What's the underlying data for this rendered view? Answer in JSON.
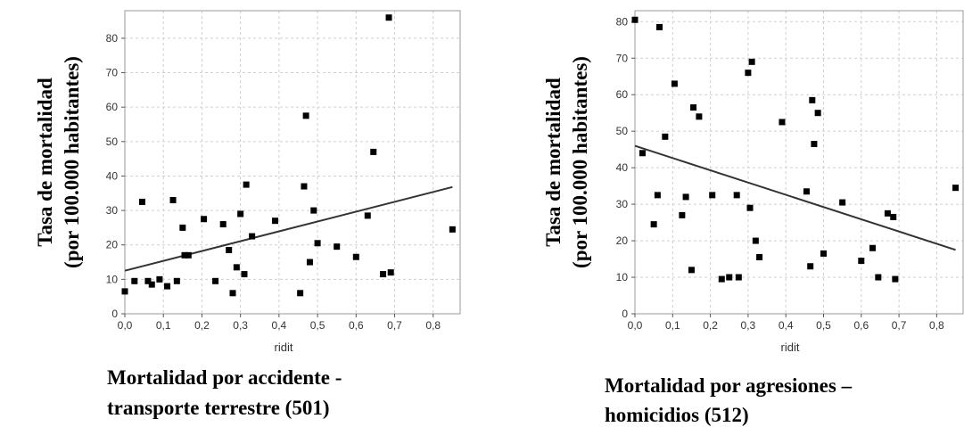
{
  "chart_data": [
    {
      "type": "scatter",
      "title": "",
      "ylabel_lines": [
        "Tasa de mortalidad",
        "(por 100.000 habitantes)"
      ],
      "xlabel": "ridit",
      "caption_lines": [
        "Mortalidad por accidente -",
        "transporte terrestre (501)"
      ],
      "xlim": [
        0,
        0.87
      ],
      "ylim": [
        0,
        88
      ],
      "xticks": [
        "0,0",
        "0,1",
        "0,2",
        "0,3",
        "0,4",
        "0,5",
        "0,6",
        "0,7",
        "0,8"
      ],
      "xtick_values": [
        0,
        0.1,
        0.2,
        0.3,
        0.4,
        0.5,
        0.6,
        0.7,
        0.8
      ],
      "yticks": [
        "0",
        "10",
        "20",
        "30",
        "40",
        "50",
        "60",
        "70",
        "80"
      ],
      "ytick_values": [
        0,
        10,
        20,
        30,
        40,
        50,
        60,
        70,
        80
      ],
      "grid": true,
      "regression_line": {
        "x": [
          0,
          0.85
        ],
        "y": [
          12.5,
          36.8
        ]
      },
      "points": [
        [
          0.0,
          6.5
        ],
        [
          0.025,
          9.5
        ],
        [
          0.045,
          32.5
        ],
        [
          0.06,
          9.5
        ],
        [
          0.07,
          8.5
        ],
        [
          0.09,
          10.0
        ],
        [
          0.11,
          8.0
        ],
        [
          0.125,
          33.0
        ],
        [
          0.135,
          9.5
        ],
        [
          0.15,
          25.0
        ],
        [
          0.155,
          17.0
        ],
        [
          0.165,
          17.0
        ],
        [
          0.205,
          27.5
        ],
        [
          0.235,
          9.5
        ],
        [
          0.255,
          26.0
        ],
        [
          0.27,
          18.5
        ],
        [
          0.28,
          6.0
        ],
        [
          0.29,
          13.5
        ],
        [
          0.3,
          29.0
        ],
        [
          0.31,
          11.5
        ],
        [
          0.315,
          37.5
        ],
        [
          0.33,
          22.5
        ],
        [
          0.39,
          27.0
        ],
        [
          0.455,
          6.0
        ],
        [
          0.465,
          37.0
        ],
        [
          0.47,
          57.5
        ],
        [
          0.48,
          15.0
        ],
        [
          0.49,
          30.0
        ],
        [
          0.5,
          20.5
        ],
        [
          0.55,
          19.5
        ],
        [
          0.6,
          16.5
        ],
        [
          0.63,
          28.5
        ],
        [
          0.645,
          47.0
        ],
        [
          0.67,
          11.5
        ],
        [
          0.685,
          86.0
        ],
        [
          0.69,
          12.0
        ],
        [
          0.85,
          24.5
        ]
      ]
    },
    {
      "type": "scatter",
      "title": "",
      "ylabel_lines": [
        "Tasa de mortalidad",
        "(por 100.000 habitantes)"
      ],
      "xlabel": "ridit",
      "caption_lines": [
        "Mortalidad por agresiones –",
        "homicidios (512)"
      ],
      "xlim": [
        0,
        0.87
      ],
      "ylim": [
        0,
        83
      ],
      "xticks": [
        "0,0",
        "0,1",
        "0,2",
        "0,3",
        "0,4",
        "0,5",
        "0,6",
        "0,7",
        "0,8"
      ],
      "xtick_values": [
        0,
        0.1,
        0.2,
        0.3,
        0.4,
        0.5,
        0.6,
        0.7,
        0.8
      ],
      "yticks": [
        "0",
        "10",
        "20",
        "30",
        "40",
        "50",
        "60",
        "70",
        "80"
      ],
      "ytick_values": [
        0,
        10,
        20,
        30,
        40,
        50,
        60,
        70,
        80
      ],
      "grid": true,
      "regression_line": {
        "x": [
          0,
          0.85
        ],
        "y": [
          46.0,
          17.5
        ]
      },
      "points": [
        [
          0.0,
          80.5
        ],
        [
          0.02,
          44.0
        ],
        [
          0.05,
          24.5
        ],
        [
          0.06,
          32.5
        ],
        [
          0.065,
          78.5
        ],
        [
          0.08,
          48.5
        ],
        [
          0.105,
          63.0
        ],
        [
          0.125,
          27.0
        ],
        [
          0.135,
          32.0
        ],
        [
          0.15,
          12.0
        ],
        [
          0.155,
          56.5
        ],
        [
          0.17,
          54.0
        ],
        [
          0.205,
          32.5
        ],
        [
          0.23,
          9.5
        ],
        [
          0.25,
          10.0
        ],
        [
          0.27,
          32.5
        ],
        [
          0.275,
          10.0
        ],
        [
          0.3,
          66.0
        ],
        [
          0.305,
          29.0
        ],
        [
          0.31,
          69.0
        ],
        [
          0.32,
          20.0
        ],
        [
          0.33,
          15.5
        ],
        [
          0.39,
          52.5
        ],
        [
          0.455,
          33.5
        ],
        [
          0.465,
          13.0
        ],
        [
          0.47,
          58.5
        ],
        [
          0.475,
          46.5
        ],
        [
          0.485,
          55.0
        ],
        [
          0.5,
          16.5
        ],
        [
          0.55,
          30.5
        ],
        [
          0.6,
          14.5
        ],
        [
          0.63,
          18.0
        ],
        [
          0.645,
          10.0
        ],
        [
          0.67,
          27.5
        ],
        [
          0.685,
          26.5
        ],
        [
          0.69,
          9.5
        ],
        [
          0.85,
          34.5
        ]
      ]
    }
  ]
}
